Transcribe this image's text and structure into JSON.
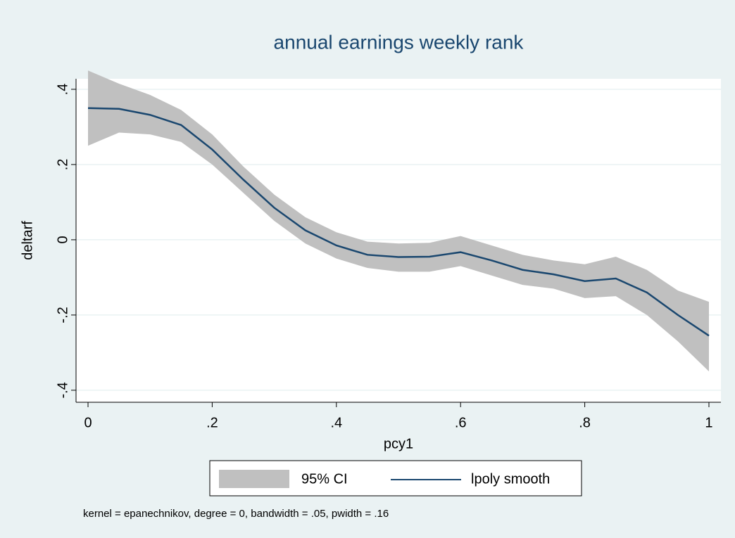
{
  "chart_data": {
    "type": "line",
    "title": "annual earnings weekly rank",
    "x_label": "pcy1",
    "y_label": "deltarf",
    "note": "kernel = epanechnikov, degree = 0, bandwidth = .05, pwidth = .16",
    "x": [
      0,
      0.05,
      0.1,
      0.15,
      0.2,
      0.25,
      0.3,
      0.35,
      0.4,
      0.45,
      0.5,
      0.55,
      0.6,
      0.65,
      0.7,
      0.75,
      0.8,
      0.85,
      0.9,
      0.95,
      1
    ],
    "series": [
      {
        "name": "95% CI",
        "color": "#c0c0c0",
        "lower": [
          0.25,
          0.285,
          0.28,
          0.26,
          0.2,
          0.125,
          0.05,
          -0.01,
          -0.05,
          -0.075,
          -0.085,
          -0.085,
          -0.07,
          -0.095,
          -0.12,
          -0.13,
          -0.155,
          -0.15,
          -0.2,
          -0.27,
          -0.35
        ],
        "upper": [
          0.45,
          0.415,
          0.385,
          0.345,
          0.28,
          0.195,
          0.12,
          0.06,
          0.02,
          -0.005,
          -0.01,
          -0.008,
          0.01,
          -0.015,
          -0.04,
          -0.055,
          -0.065,
          -0.045,
          -0.08,
          -0.135,
          -0.165
        ]
      },
      {
        "name": "lpoly smooth",
        "color": "#1a476f",
        "values": [
          0.35,
          0.348,
          0.332,
          0.305,
          0.24,
          0.16,
          0.085,
          0.025,
          -0.015,
          -0.04,
          -0.046,
          -0.045,
          -0.033,
          -0.055,
          -0.08,
          -0.092,
          -0.11,
          -0.103,
          -0.14,
          -0.2,
          -0.255
        ]
      }
    ],
    "xlim": [
      -0.0193,
      1.0193
    ],
    "ylim": [
      -0.432,
      0.428
    ],
    "xticks": [
      0,
      {
        "value": 0.2,
        "label": ".2"
      },
      {
        "value": 0.4,
        "label": ".4"
      },
      {
        "value": 0.6,
        "label": ".6"
      },
      {
        "value": 0.8,
        "label": ".8"
      },
      1
    ],
    "yticks": [
      {
        "value": -0.4,
        "label": "-.4"
      },
      {
        "value": -0.2,
        "label": "-.2"
      },
      0,
      {
        "value": 0.2,
        "label": ".2"
      },
      {
        "value": 0.4,
        "label": ".4"
      }
    ],
    "grid": true,
    "legend": "bottom"
  }
}
